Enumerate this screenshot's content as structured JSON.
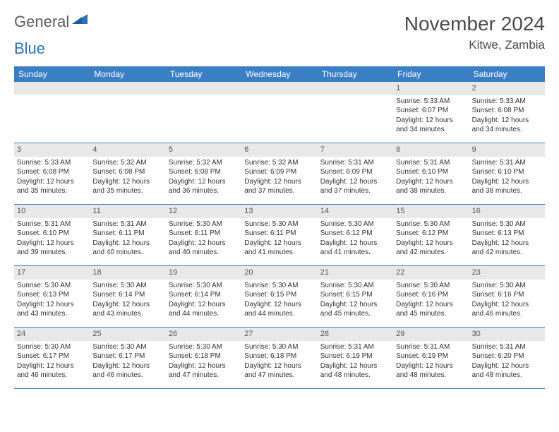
{
  "logo": {
    "general": "General",
    "blue": "Blue"
  },
  "title": "November 2024",
  "location": "Kitwe, Zambia",
  "colors": {
    "header_bg": "#3a7fc4",
    "header_text": "#ffffff",
    "row_divider": "#3a7fc4",
    "daynum_bg": "#e8e8e8",
    "text": "#333333",
    "logo_gray": "#5b5b5b",
    "logo_blue": "#2d6fb6"
  },
  "days_of_week": [
    "Sunday",
    "Monday",
    "Tuesday",
    "Wednesday",
    "Thursday",
    "Friday",
    "Saturday"
  ],
  "weeks": [
    [
      {
        "n": "",
        "sr": "",
        "ss": "",
        "dl": ""
      },
      {
        "n": "",
        "sr": "",
        "ss": "",
        "dl": ""
      },
      {
        "n": "",
        "sr": "",
        "ss": "",
        "dl": ""
      },
      {
        "n": "",
        "sr": "",
        "ss": "",
        "dl": ""
      },
      {
        "n": "",
        "sr": "",
        "ss": "",
        "dl": ""
      },
      {
        "n": "1",
        "sr": "Sunrise: 5:33 AM",
        "ss": "Sunset: 6:07 PM",
        "dl": "Daylight: 12 hours and 34 minutes."
      },
      {
        "n": "2",
        "sr": "Sunrise: 5:33 AM",
        "ss": "Sunset: 6:08 PM",
        "dl": "Daylight: 12 hours and 34 minutes."
      }
    ],
    [
      {
        "n": "3",
        "sr": "Sunrise: 5:33 AM",
        "ss": "Sunset: 6:08 PM",
        "dl": "Daylight: 12 hours and 35 minutes."
      },
      {
        "n": "4",
        "sr": "Sunrise: 5:32 AM",
        "ss": "Sunset: 6:08 PM",
        "dl": "Daylight: 12 hours and 35 minutes."
      },
      {
        "n": "5",
        "sr": "Sunrise: 5:32 AM",
        "ss": "Sunset: 6:08 PM",
        "dl": "Daylight: 12 hours and 36 minutes."
      },
      {
        "n": "6",
        "sr": "Sunrise: 5:32 AM",
        "ss": "Sunset: 6:09 PM",
        "dl": "Daylight: 12 hours and 37 minutes."
      },
      {
        "n": "7",
        "sr": "Sunrise: 5:31 AM",
        "ss": "Sunset: 6:09 PM",
        "dl": "Daylight: 12 hours and 37 minutes."
      },
      {
        "n": "8",
        "sr": "Sunrise: 5:31 AM",
        "ss": "Sunset: 6:10 PM",
        "dl": "Daylight: 12 hours and 38 minutes."
      },
      {
        "n": "9",
        "sr": "Sunrise: 5:31 AM",
        "ss": "Sunset: 6:10 PM",
        "dl": "Daylight: 12 hours and 38 minutes."
      }
    ],
    [
      {
        "n": "10",
        "sr": "Sunrise: 5:31 AM",
        "ss": "Sunset: 6:10 PM",
        "dl": "Daylight: 12 hours and 39 minutes."
      },
      {
        "n": "11",
        "sr": "Sunrise: 5:31 AM",
        "ss": "Sunset: 6:11 PM",
        "dl": "Daylight: 12 hours and 40 minutes."
      },
      {
        "n": "12",
        "sr": "Sunrise: 5:30 AM",
        "ss": "Sunset: 6:11 PM",
        "dl": "Daylight: 12 hours and 40 minutes."
      },
      {
        "n": "13",
        "sr": "Sunrise: 5:30 AM",
        "ss": "Sunset: 6:11 PM",
        "dl": "Daylight: 12 hours and 41 minutes."
      },
      {
        "n": "14",
        "sr": "Sunrise: 5:30 AM",
        "ss": "Sunset: 6:12 PM",
        "dl": "Daylight: 12 hours and 41 minutes."
      },
      {
        "n": "15",
        "sr": "Sunrise: 5:30 AM",
        "ss": "Sunset: 6:12 PM",
        "dl": "Daylight: 12 hours and 42 minutes."
      },
      {
        "n": "16",
        "sr": "Sunrise: 5:30 AM",
        "ss": "Sunset: 6:13 PM",
        "dl": "Daylight: 12 hours and 42 minutes."
      }
    ],
    [
      {
        "n": "17",
        "sr": "Sunrise: 5:30 AM",
        "ss": "Sunset: 6:13 PM",
        "dl": "Daylight: 12 hours and 43 minutes."
      },
      {
        "n": "18",
        "sr": "Sunrise: 5:30 AM",
        "ss": "Sunset: 6:14 PM",
        "dl": "Daylight: 12 hours and 43 minutes."
      },
      {
        "n": "19",
        "sr": "Sunrise: 5:30 AM",
        "ss": "Sunset: 6:14 PM",
        "dl": "Daylight: 12 hours and 44 minutes."
      },
      {
        "n": "20",
        "sr": "Sunrise: 5:30 AM",
        "ss": "Sunset: 6:15 PM",
        "dl": "Daylight: 12 hours and 44 minutes."
      },
      {
        "n": "21",
        "sr": "Sunrise: 5:30 AM",
        "ss": "Sunset: 6:15 PM",
        "dl": "Daylight: 12 hours and 45 minutes."
      },
      {
        "n": "22",
        "sr": "Sunrise: 5:30 AM",
        "ss": "Sunset: 6:16 PM",
        "dl": "Daylight: 12 hours and 45 minutes."
      },
      {
        "n": "23",
        "sr": "Sunrise: 5:30 AM",
        "ss": "Sunset: 6:16 PM",
        "dl": "Daylight: 12 hours and 46 minutes."
      }
    ],
    [
      {
        "n": "24",
        "sr": "Sunrise: 5:30 AM",
        "ss": "Sunset: 6:17 PM",
        "dl": "Daylight: 12 hours and 46 minutes."
      },
      {
        "n": "25",
        "sr": "Sunrise: 5:30 AM",
        "ss": "Sunset: 6:17 PM",
        "dl": "Daylight: 12 hours and 46 minutes."
      },
      {
        "n": "26",
        "sr": "Sunrise: 5:30 AM",
        "ss": "Sunset: 6:18 PM",
        "dl": "Daylight: 12 hours and 47 minutes."
      },
      {
        "n": "27",
        "sr": "Sunrise: 5:30 AM",
        "ss": "Sunset: 6:18 PM",
        "dl": "Daylight: 12 hours and 47 minutes."
      },
      {
        "n": "28",
        "sr": "Sunrise: 5:31 AM",
        "ss": "Sunset: 6:19 PM",
        "dl": "Daylight: 12 hours and 48 minutes."
      },
      {
        "n": "29",
        "sr": "Sunrise: 5:31 AM",
        "ss": "Sunset: 6:19 PM",
        "dl": "Daylight: 12 hours and 48 minutes."
      },
      {
        "n": "30",
        "sr": "Sunrise: 5:31 AM",
        "ss": "Sunset: 6:20 PM",
        "dl": "Daylight: 12 hours and 48 minutes."
      }
    ]
  ]
}
